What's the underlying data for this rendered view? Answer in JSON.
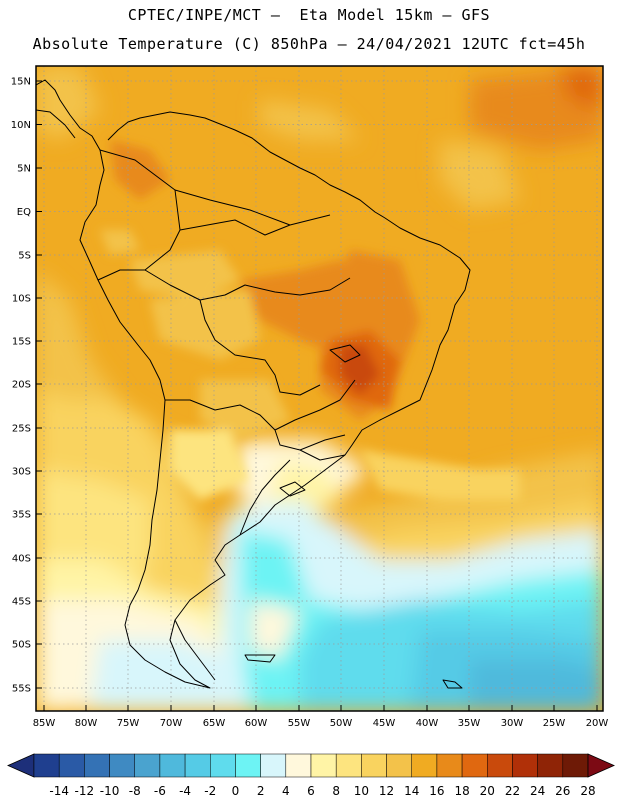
{
  "header": {
    "title_line1": "CPTEC/INPE/MCT –  Eta Model 15km – GFS",
    "title_line2": "Absolute Temperature (C) 850hPa – 24/04/2021 12UTC fct=45h"
  },
  "lat_labels": [
    "15N",
    "10N",
    "5N",
    "EQ",
    "5S",
    "10S",
    "15S",
    "20S",
    "25S",
    "30S",
    "35S",
    "40S",
    "45S",
    "50S",
    "55S"
  ],
  "lon_labels": [
    "85W",
    "80W",
    "75W",
    "70W",
    "65W",
    "60W",
    "55W",
    "50W",
    "45W",
    "40W",
    "35W",
    "30W",
    "25W",
    "20W"
  ],
  "colorbar": {
    "labels": [
      "-14",
      "-12",
      "-10",
      "-8",
      "-6",
      "-4",
      "-2",
      "0",
      "2",
      "4",
      "6",
      "8",
      "10",
      "12",
      "14",
      "16",
      "18",
      "20",
      "22",
      "24",
      "26",
      "28"
    ],
    "colors": [
      "#1f3f8f",
      "#2a5aa6",
      "#3472b5",
      "#3f8ac2",
      "#4aa3cf",
      "#4fb9dc",
      "#55cbe6",
      "#5fdced",
      "#6df3f4",
      "#d8f6fb",
      "#fff8dc",
      "#fff4a6",
      "#fde47f",
      "#f9d35f",
      "#f3c24a",
      "#f0ab22",
      "#e88a1a",
      "#e06810",
      "#c94a0c",
      "#b03008",
      "#8f2406",
      "#6e1a06"
    ],
    "under_color": "#1d2f7a",
    "over_color": "#7c0a14"
  },
  "colors": {
    "frame": "#000000",
    "grid": "#9a9a9a"
  }
}
